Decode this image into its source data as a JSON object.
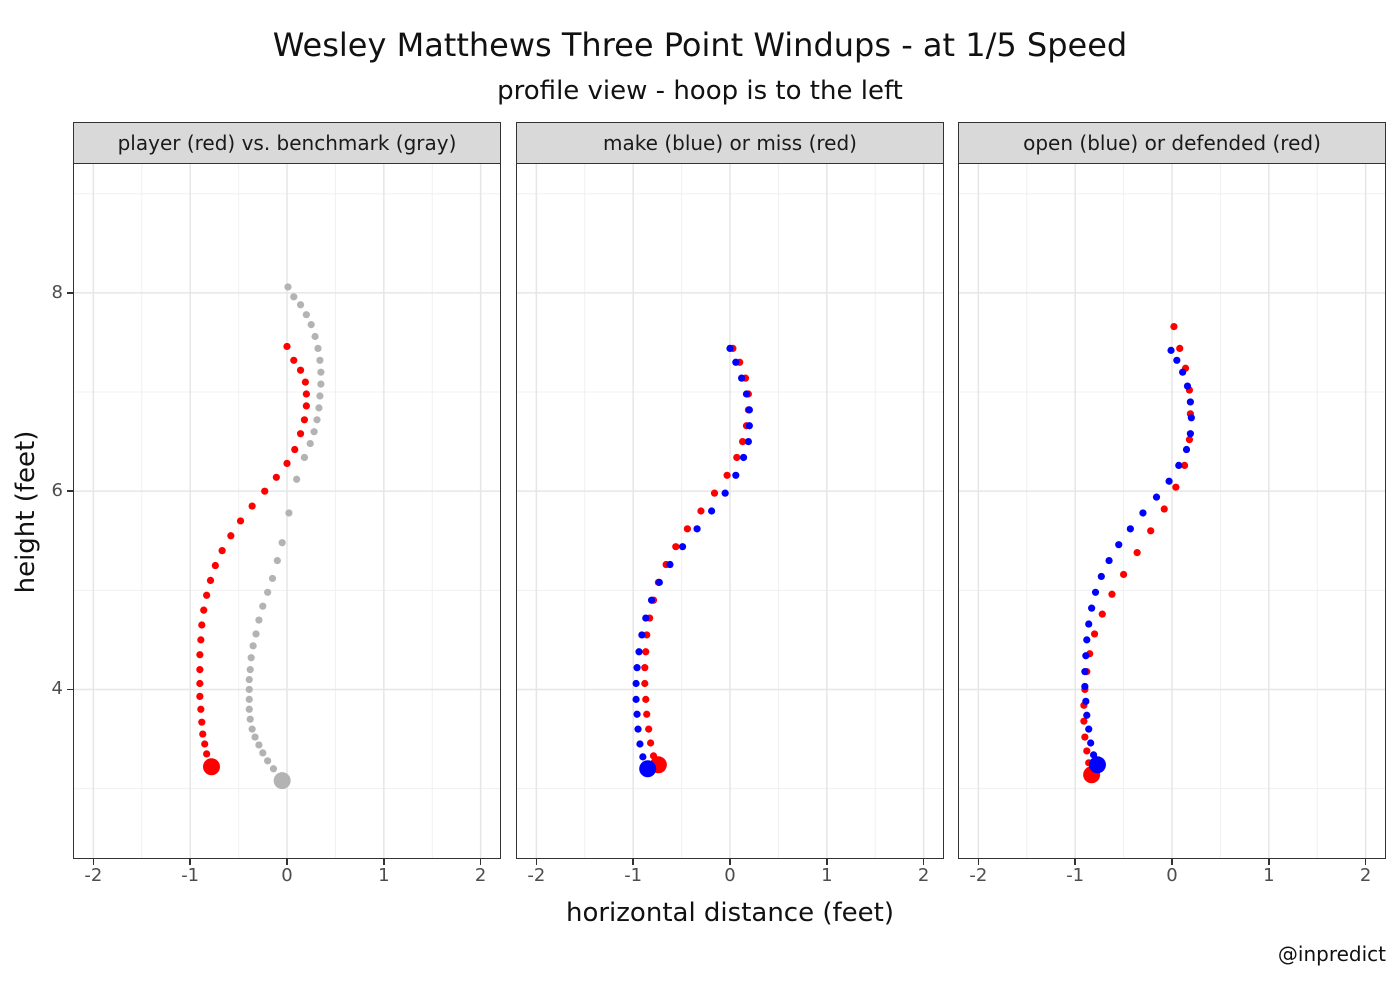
{
  "header": {
    "title": "Wesley Matthews Three Point Windups - at 1/5 Speed",
    "subtitle": "profile view - hoop is to the left"
  },
  "axes": {
    "xlabel": "horizontal distance (feet)",
    "ylabel": "height (feet)",
    "xlim": [
      -2.2,
      2.2
    ],
    "ylim": [
      2.3,
      9.3
    ],
    "x_ticks": [
      -2,
      -1,
      0,
      1,
      2
    ],
    "x_tick_labels": [
      "-2",
      "-1",
      "0",
      "1",
      "2"
    ],
    "y_ticks": [
      4,
      6,
      8
    ],
    "y_tick_labels": [
      "4",
      "6",
      "8"
    ],
    "grid": true
  },
  "caption": "@inpredict",
  "colors": {
    "red": "#ff0000",
    "blue": "#0000ff",
    "gray": "#b3b3b3",
    "strip_background": "#d9d9d9"
  },
  "chart_data": [
    {
      "type": "scatter",
      "strip_label": "player (red) vs. benchmark (gray)",
      "series": [
        {
          "color": "gray",
          "start": [
            -0.05,
            3.08
          ],
          "x": [
            -0.14,
            -0.2,
            -0.25,
            -0.29,
            -0.33,
            -0.36,
            -0.38,
            -0.39,
            -0.39,
            -0.39,
            -0.39,
            -0.38,
            -0.37,
            -0.35,
            -0.32,
            -0.29,
            -0.25,
            -0.2,
            -0.15,
            -0.1,
            -0.05,
            0.02,
            0.1,
            0.18,
            0.24,
            0.28,
            0.31,
            0.33,
            0.34,
            0.35,
            0.35,
            0.34,
            0.32,
            0.29,
            0.25,
            0.2,
            0.14,
            0.07,
            0.01
          ],
          "y": [
            3.2,
            3.28,
            3.36,
            3.44,
            3.52,
            3.6,
            3.7,
            3.8,
            3.9,
            4.0,
            4.1,
            4.2,
            4.32,
            4.44,
            4.56,
            4.7,
            4.84,
            4.98,
            5.12,
            5.3,
            5.48,
            5.78,
            6.12,
            6.34,
            6.48,
            6.6,
            6.72,
            6.84,
            6.96,
            7.08,
            7.2,
            7.32,
            7.44,
            7.56,
            7.68,
            7.78,
            7.88,
            7.96,
            8.06
          ]
        },
        {
          "color": "red",
          "start": [
            -0.78,
            3.22
          ],
          "x": [
            -0.83,
            -0.85,
            -0.87,
            -0.88,
            -0.89,
            -0.9,
            -0.9,
            -0.9,
            -0.9,
            -0.89,
            -0.88,
            -0.86,
            -0.83,
            -0.79,
            -0.74,
            -0.67,
            -0.58,
            -0.48,
            -0.36,
            -0.23,
            -0.11,
            0.0,
            0.08,
            0.14,
            0.18,
            0.2,
            0.2,
            0.19,
            0.14,
            0.07,
            0.0
          ],
          "y": [
            3.35,
            3.45,
            3.55,
            3.67,
            3.8,
            3.93,
            4.06,
            4.2,
            4.35,
            4.5,
            4.65,
            4.8,
            4.95,
            5.1,
            5.25,
            5.4,
            5.55,
            5.7,
            5.85,
            6.0,
            6.14,
            6.28,
            6.42,
            6.58,
            6.72,
            6.86,
            6.98,
            7.1,
            7.22,
            7.32,
            7.46
          ]
        }
      ]
    },
    {
      "type": "scatter",
      "strip_label": "make (blue) or miss (red)",
      "series": [
        {
          "color": "red",
          "start": [
            -0.74,
            3.24
          ],
          "x": [
            -0.79,
            -0.82,
            -0.84,
            -0.86,
            -0.87,
            -0.88,
            -0.88,
            -0.87,
            -0.86,
            -0.83,
            -0.79,
            -0.74,
            -0.66,
            -0.56,
            -0.44,
            -0.3,
            -0.16,
            -0.03,
            0.07,
            0.13,
            0.17,
            0.19,
            0.19,
            0.16,
            0.1,
            0.03
          ],
          "y": [
            3.33,
            3.46,
            3.6,
            3.75,
            3.9,
            4.06,
            4.22,
            4.38,
            4.55,
            4.72,
            4.9,
            5.08,
            5.26,
            5.44,
            5.62,
            5.8,
            5.98,
            6.16,
            6.34,
            6.5,
            6.66,
            6.82,
            6.98,
            7.14,
            7.3,
            7.44
          ]
        },
        {
          "color": "blue",
          "start": [
            -0.85,
            3.2
          ],
          "x": [
            -0.9,
            -0.93,
            -0.95,
            -0.96,
            -0.97,
            -0.97,
            -0.96,
            -0.94,
            -0.91,
            -0.87,
            -0.81,
            -0.73,
            -0.62,
            -0.49,
            -0.34,
            -0.19,
            -0.05,
            0.06,
            0.14,
            0.19,
            0.2,
            0.2,
            0.17,
            0.12,
            0.06,
            0.0
          ],
          "y": [
            3.32,
            3.45,
            3.6,
            3.75,
            3.9,
            4.06,
            4.22,
            4.38,
            4.55,
            4.72,
            4.9,
            5.08,
            5.26,
            5.44,
            5.62,
            5.8,
            5.98,
            6.16,
            6.34,
            6.5,
            6.66,
            6.82,
            6.98,
            7.14,
            7.3,
            7.44
          ]
        }
      ]
    },
    {
      "type": "scatter",
      "strip_label": "open (blue) or defended (red)",
      "series": [
        {
          "color": "red",
          "start": [
            -0.83,
            3.14
          ],
          "x": [
            -0.86,
            -0.88,
            -0.9,
            -0.91,
            -0.91,
            -0.9,
            -0.88,
            -0.85,
            -0.8,
            -0.72,
            -0.62,
            -0.5,
            -0.36,
            -0.22,
            -0.08,
            0.04,
            0.13,
            0.18,
            0.19,
            0.18,
            0.14,
            0.08,
            0.02
          ],
          "y": [
            3.26,
            3.38,
            3.52,
            3.68,
            3.84,
            4.0,
            4.18,
            4.36,
            4.56,
            4.76,
            4.96,
            5.16,
            5.38,
            5.6,
            5.82,
            6.04,
            6.26,
            6.52,
            6.78,
            7.02,
            7.24,
            7.44,
            7.66
          ]
        },
        {
          "color": "blue",
          "start": [
            -0.77,
            3.24
          ],
          "x": [
            -0.81,
            -0.84,
            -0.86,
            -0.88,
            -0.89,
            -0.9,
            -0.9,
            -0.89,
            -0.88,
            -0.86,
            -0.83,
            -0.79,
            -0.73,
            -0.65,
            -0.55,
            -0.43,
            -0.3,
            -0.16,
            -0.03,
            0.07,
            0.15,
            0.19,
            0.2,
            0.19,
            0.16,
            0.11,
            0.05,
            -0.01
          ],
          "y": [
            3.34,
            3.46,
            3.6,
            3.74,
            3.88,
            4.03,
            4.18,
            4.34,
            4.5,
            4.66,
            4.82,
            4.98,
            5.14,
            5.3,
            5.46,
            5.62,
            5.78,
            5.94,
            6.1,
            6.26,
            6.42,
            6.58,
            6.74,
            6.9,
            7.06,
            7.2,
            7.32,
            7.42
          ]
        }
      ]
    }
  ]
}
